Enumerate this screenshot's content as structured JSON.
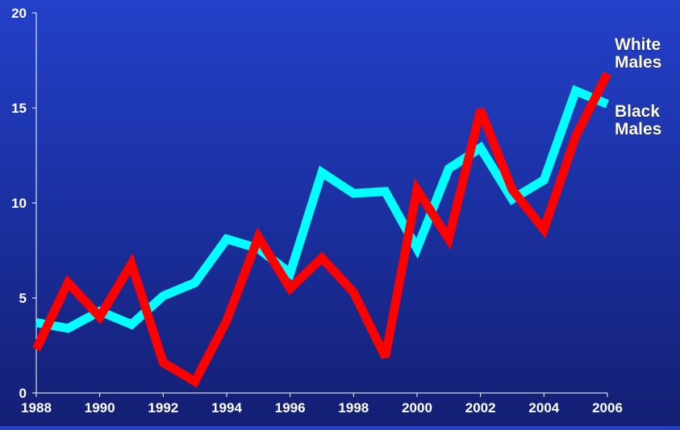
{
  "chart_data": {
    "type": "line",
    "title": "",
    "xlabel": "",
    "ylabel": "",
    "x": [
      1988,
      1989,
      1990,
      1991,
      1992,
      1993,
      1994,
      1995,
      1996,
      1997,
      1998,
      1999,
      2000,
      2001,
      2002,
      2003,
      2004,
      2005,
      2006
    ],
    "xticks": [
      "1988",
      "1990",
      "1992",
      "1994",
      "1996",
      "1998",
      "2000",
      "2002",
      "2004",
      "2006"
    ],
    "yticks": [
      "0",
      "5",
      "10",
      "15",
      "20"
    ],
    "xlim": [
      1988,
      2006
    ],
    "ylim": [
      0,
      20
    ],
    "grid": false,
    "legend": "inline labels at line ends (right)",
    "series": [
      {
        "name": "Black Males",
        "label_lines": [
          "Black",
          "Males"
        ],
        "color": "#00ffff",
        "values": [
          3.7,
          3.4,
          4.3,
          3.6,
          5.1,
          5.8,
          8.1,
          7.6,
          6.3,
          11.6,
          10.5,
          10.6,
          7.6,
          11.8,
          12.9,
          10.2,
          11.2,
          15.9,
          15.2
        ]
      },
      {
        "name": "White Males",
        "label_lines": [
          "White",
          "Males"
        ],
        "color": "#ff0000",
        "values": [
          2.3,
          5.8,
          4.0,
          6.8,
          1.6,
          0.6,
          3.8,
          8.2,
          5.5,
          7.1,
          5.3,
          1.9,
          10.7,
          8.1,
          14.9,
          10.7,
          8.6,
          13.5,
          16.8
        ]
      }
    ]
  }
}
